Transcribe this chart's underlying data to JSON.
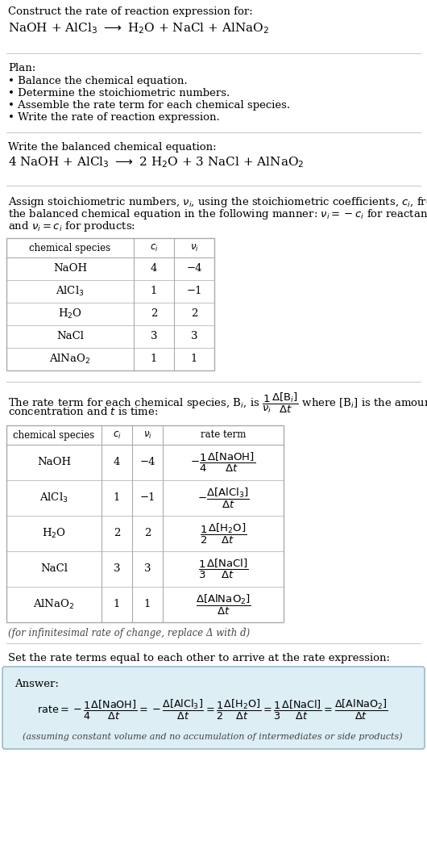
{
  "title_line1": "Construct the rate of reaction expression for:",
  "title_line2": "NaOH + AlCl$_3$ $\\longrightarrow$ H$_2$O + NaCl + AlNaO$_2$",
  "plan_header": "Plan:",
  "plan_items": [
    "• Balance the chemical equation.",
    "• Determine the stoichiometric numbers.",
    "• Assemble the rate term for each chemical species.",
    "• Write the rate of reaction expression."
  ],
  "balanced_header": "Write the balanced chemical equation:",
  "balanced_eq": "4 NaOH + AlCl$_3$ $\\longrightarrow$ 2 H$_2$O + 3 NaCl + AlNaO$_2$",
  "stoich_intro_lines": [
    "Assign stoichiometric numbers, $\\nu_i$, using the stoichiometric coefficients, $c_i$, from",
    "the balanced chemical equation in the following manner: $\\nu_i = -c_i$ for reactants",
    "and $\\nu_i = c_i$ for products:"
  ],
  "table1_headers": [
    "chemical species",
    "$c_i$",
    "$\\nu_i$"
  ],
  "table1_rows": [
    [
      "NaOH",
      "4",
      "−4"
    ],
    [
      "AlCl$_3$",
      "1",
      "−1"
    ],
    [
      "H$_2$O",
      "2",
      "2"
    ],
    [
      "NaCl",
      "3",
      "3"
    ],
    [
      "AlNaO$_2$",
      "1",
      "1"
    ]
  ],
  "rate_term_intro_lines": [
    "The rate term for each chemical species, B$_i$, is $\\dfrac{1}{\\nu_i}\\dfrac{\\Delta[\\mathrm{B}_i]}{\\Delta t}$ where [B$_i$] is the amount",
    "concentration and $t$ is time:"
  ],
  "table2_headers": [
    "chemical species",
    "$c_i$",
    "$\\nu_i$",
    "rate term"
  ],
  "table2_rows": [
    [
      "NaOH",
      "4",
      "−4",
      "$-\\dfrac{1}{4}\\dfrac{\\Delta[\\mathrm{NaOH}]}{\\Delta t}$"
    ],
    [
      "AlCl$_3$",
      "1",
      "−1",
      "$-\\dfrac{\\Delta[\\mathrm{AlCl_3}]}{\\Delta t}$"
    ],
    [
      "H$_2$O",
      "2",
      "2",
      "$\\dfrac{1}{2}\\dfrac{\\Delta[\\mathrm{H_2O}]}{\\Delta t}$"
    ],
    [
      "NaCl",
      "3",
      "3",
      "$\\dfrac{1}{3}\\dfrac{\\Delta[\\mathrm{NaCl}]}{\\Delta t}$"
    ],
    [
      "AlNaO$_2$",
      "1",
      "1",
      "$\\dfrac{\\Delta[\\mathrm{AlNaO_2}]}{\\Delta t}$"
    ]
  ],
  "delta_note": "(for infinitesimal rate of change, replace Δ with ḋ)",
  "rate_equal_intro": "Set the rate terms equal to each other to arrive at the rate expression:",
  "answer_label": "Answer:",
  "rate_expression": "$\\mathrm{rate} = -\\dfrac{1}{4}\\dfrac{\\Delta[\\mathrm{NaOH}]}{\\Delta t} = -\\dfrac{\\Delta[\\mathrm{AlCl_3}]}{\\Delta t} = \\dfrac{1}{2}\\dfrac{\\Delta[\\mathrm{H_2O}]}{\\Delta t} = \\dfrac{1}{3}\\dfrac{\\Delta[\\mathrm{NaCl}]}{\\Delta t} = \\dfrac{\\Delta[\\mathrm{AlNaO_2}]}{\\Delta t}$",
  "assumption_note": "(assuming constant volume and no accumulation of intermediates or side products)",
  "bg_color": "#ffffff",
  "answer_bg_color": "#ddeef5",
  "table_border_color": "#aaaaaa",
  "text_color": "#000000",
  "divider_color": "#cccccc",
  "answer_border_color": "#99bbcc"
}
